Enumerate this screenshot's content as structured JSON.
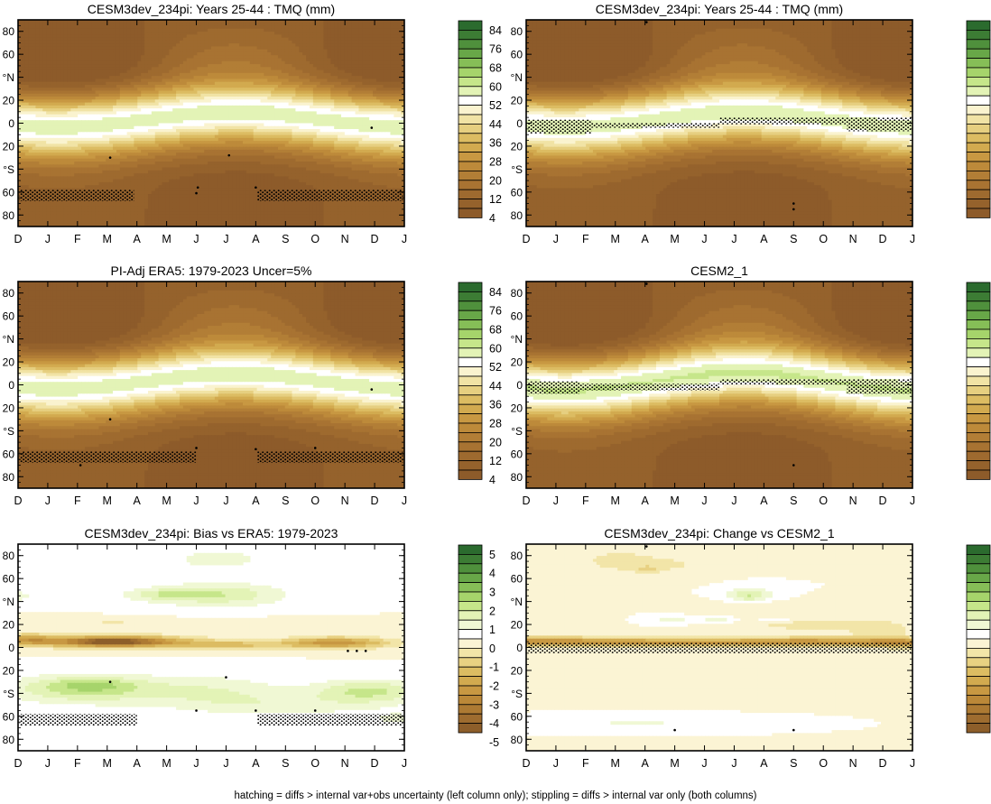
{
  "footer_note": "hatching = diffs > internal var+obs uncertainty (left column only); stippling = diffs > internal var only (both columns)",
  "chart_data": [
    {
      "type": "heatmap",
      "title": "CESM3dev_234pi: Years 25-44 : TMQ (mm)",
      "colorbar": "tmq",
      "x_ticks": [
        "D",
        "J",
        "F",
        "M",
        "A",
        "M",
        "J",
        "J",
        "A",
        "S",
        "O",
        "N",
        "D",
        "J"
      ],
      "y_ticks": [
        "80",
        "60",
        "°N",
        "20",
        "0",
        "20",
        "°S",
        "60",
        "80"
      ],
      "ylim": [
        -90,
        90
      ],
      "tropical_max": 54,
      "itcz_lat_amp": 6,
      "green_patch": {
        "x0": 4.9,
        "x1": 8.6,
        "lat": 8,
        "dlat": 2.5
      },
      "stipple_bands": [
        {
          "x0": 0.05,
          "x1": 3.9,
          "lat0": -58,
          "lat1": -68
        },
        {
          "x0": 8.05,
          "x1": 12.95,
          "lat0": -58,
          "lat1": -68
        }
      ],
      "dots": [
        {
          "x": 3.1,
          "lat": -30
        },
        {
          "x": 7.1,
          "lat": -28
        },
        {
          "x": 11.9,
          "lat": -4
        },
        {
          "x": 6.05,
          "lat": -56
        },
        {
          "x": 6.0,
          "lat": -61
        },
        {
          "x": 8.0,
          "lat": -56
        }
      ]
    },
    {
      "type": "heatmap",
      "title": "CESM3dev_234pi: Years 25-44 : TMQ (mm)",
      "colorbar": "tmq",
      "x_ticks": [
        "D",
        "J",
        "F",
        "M",
        "A",
        "M",
        "J",
        "J",
        "A",
        "S",
        "O",
        "N",
        "D",
        "J"
      ],
      "y_ticks": [
        "80",
        "60",
        "°N",
        "20",
        "0",
        "20",
        "°S",
        "60",
        "80"
      ],
      "ylim": [
        -90,
        90
      ],
      "tropical_max": 54,
      "itcz_lat_amp": 6,
      "green_patch": {
        "x0": 4.9,
        "x1": 8.6,
        "lat": 8,
        "dlat": 2.5
      },
      "stipple_bands": [
        {
          "x0": 0.05,
          "x1": 2.2,
          "lat0": 3,
          "lat1": -9
        },
        {
          "x0": 2.2,
          "x1": 6.5,
          "lat0": 0,
          "lat1": -4
        },
        {
          "x0": 6.5,
          "x1": 10.8,
          "lat0": 5,
          "lat1": -1
        },
        {
          "x0": 10.8,
          "x1": 12.95,
          "lat0": 5,
          "lat1": -7
        }
      ],
      "dots": [
        {
          "x": 4.05,
          "lat": 88
        },
        {
          "x": 9.0,
          "lat": -70
        },
        {
          "x": 9.0,
          "lat": -75
        }
      ]
    },
    {
      "type": "heatmap",
      "title": "PI-Adj ERA5: 1979-2023 Uncer=5%",
      "colorbar": "tmq",
      "x_ticks": [
        "D",
        "J",
        "F",
        "M",
        "A",
        "M",
        "J",
        "J",
        "A",
        "S",
        "O",
        "N",
        "D",
        "J"
      ],
      "y_ticks": [
        "80",
        "60",
        "°N",
        "20",
        "0",
        "20",
        "°S",
        "60",
        "80"
      ],
      "ylim": [
        -90,
        90
      ],
      "tropical_max": 54,
      "itcz_lat_amp": 6,
      "green_patch": {
        "x0": 3.5,
        "x1": 8.9,
        "lat": 4.5,
        "dlat": 2.5
      },
      "stipple_bands": [
        {
          "x0": 0.05,
          "x1": 6.0,
          "lat0": -58,
          "lat1": -68
        },
        {
          "x0": 8.05,
          "x1": 12.95,
          "lat0": -58,
          "lat1": -68
        }
      ],
      "dots": [
        {
          "x": 3.1,
          "lat": -30
        },
        {
          "x": 11.9,
          "lat": -4
        },
        {
          "x": 10.0,
          "lat": -55
        },
        {
          "x": 2.1,
          "lat": -70
        },
        {
          "x": 6.0,
          "lat": -55
        },
        {
          "x": 8.0,
          "lat": -56
        }
      ]
    },
    {
      "type": "heatmap",
      "title": "CESM2_1",
      "colorbar": "tmq",
      "x_ticks": [
        "D",
        "J",
        "F",
        "M",
        "A",
        "M",
        "J",
        "J",
        "A",
        "S",
        "O",
        "N",
        "D",
        "J"
      ],
      "y_ticks": [
        "80",
        "60",
        "°N",
        "20",
        "0",
        "20",
        "°S",
        "60",
        "80"
      ],
      "ylim": [
        -90,
        90
      ],
      "tropical_max": 56,
      "itcz_lat_amp": 7,
      "green_patch": {
        "x0": 1.5,
        "x1": 10.6,
        "lat": 4,
        "dlat": 4
      },
      "stipple_bands": [
        {
          "x0": 0.05,
          "x1": 1.8,
          "lat0": 3,
          "lat1": -8
        },
        {
          "x0": 1.8,
          "x1": 6.5,
          "lat0": 1,
          "lat1": -5
        },
        {
          "x0": 6.5,
          "x1": 10.8,
          "lat0": 5,
          "lat1": 0
        },
        {
          "x0": 10.8,
          "x1": 12.95,
          "lat0": 5,
          "lat1": -8
        }
      ],
      "dots": [
        {
          "x": 4.05,
          "lat": 88
        },
        {
          "x": 9.0,
          "lat": -70
        }
      ]
    },
    {
      "type": "heatmap",
      "title": "CESM3dev_234pi: Bias vs ERA5: 1979-2023",
      "colorbar": "diff",
      "x_ticks": [
        "D",
        "J",
        "F",
        "M",
        "A",
        "M",
        "J",
        "J",
        "A",
        "S",
        "O",
        "N",
        "D",
        "J"
      ],
      "y_ticks": [
        "80",
        "60",
        "°N",
        "20",
        "0",
        "20",
        "°S",
        "60",
        "80"
      ],
      "ylim": [
        -90,
        90
      ],
      "blobs": [
        {
          "x": 6.7,
          "lat": 77,
          "sx": 1.6,
          "sy": 9,
          "v": 0.8
        },
        {
          "x": 6.7,
          "lat": 46,
          "sx": 2.2,
          "sy": 10,
          "v": 1.5
        },
        {
          "x": 4.8,
          "lat": 46,
          "sx": 1.2,
          "sy": 5,
          "v": 0.9
        },
        {
          "x": 0.0,
          "lat": 45,
          "sx": 0.5,
          "sy": 4,
          "v": 0.8
        },
        {
          "x": 3.2,
          "lat": 5,
          "sx": 2.5,
          "sy": 5,
          "v": -4.2
        },
        {
          "x": 3.2,
          "lat": 5,
          "sx": 1.1,
          "sy": 3,
          "v": -1.3
        },
        {
          "x": 10.7,
          "lat": 4,
          "sx": 1.8,
          "sy": 5,
          "v": -2.8
        },
        {
          "x": 7.2,
          "lat": 2,
          "sx": 1.8,
          "sy": 4,
          "v": -1.5
        },
        {
          "x": 0.3,
          "lat": 7,
          "sx": 0.9,
          "sy": 5,
          "v": -2.0
        },
        {
          "x": 3.2,
          "lat": 23,
          "sx": 1.8,
          "sy": 3,
          "v": -0.6
        },
        {
          "x": 9.6,
          "lat": 22,
          "sx": 2.2,
          "sy": 3,
          "v": -0.5
        },
        {
          "x": 2.2,
          "lat": -36,
          "sx": 2.5,
          "sy": 12,
          "v": 1.8
        },
        {
          "x": 2.5,
          "lat": -32,
          "sx": 1.2,
          "sy": 5,
          "v": 0.7
        },
        {
          "x": 6.5,
          "lat": -38,
          "sx": 2.5,
          "sy": 14,
          "v": 0.9
        },
        {
          "x": 11.8,
          "lat": -38,
          "sx": 1.8,
          "sy": 10,
          "v": 1.6
        },
        {
          "x": 9.0,
          "lat": -50,
          "sx": 3.5,
          "sy": 10,
          "v": 0.7
        },
        {
          "x": 12.9,
          "lat": -62,
          "sx": 1.2,
          "sy": 6,
          "v": 0.6
        }
      ],
      "stipple_bands": [
        {
          "x0": 0.05,
          "x1": 4.0,
          "lat0": -58,
          "lat1": -68
        },
        {
          "x0": 8.05,
          "x1": 12.95,
          "lat0": -58,
          "lat1": -68
        }
      ],
      "dots": [
        {
          "x": 3.1,
          "lat": -30
        },
        {
          "x": 7.0,
          "lat": -26
        },
        {
          "x": 11.1,
          "lat": -3
        },
        {
          "x": 11.4,
          "lat": -3
        },
        {
          "x": 11.7,
          "lat": -3
        },
        {
          "x": 10.0,
          "lat": -55
        },
        {
          "x": 6.0,
          "lat": -55
        },
        {
          "x": 8.0,
          "lat": -55
        }
      ]
    },
    {
      "type": "heatmap",
      "title": "CESM3dev_234pi: Change vs CESM2_1",
      "colorbar": "diff",
      "x_ticks": [
        "D",
        "J",
        "F",
        "M",
        "A",
        "M",
        "J",
        "J",
        "A",
        "S",
        "O",
        "N",
        "D",
        "J"
      ],
      "y_ticks": [
        "80",
        "60",
        "°N",
        "20",
        "0",
        "20",
        "°S",
        "60",
        "80"
      ],
      "ylim": [
        -90,
        90
      ],
      "blobs": [
        {
          "x": 0.5,
          "lat": 5,
          "sx": 3.5,
          "sy": 4,
          "v": -3.0
        },
        {
          "x": 5.5,
          "lat": 4,
          "sx": 2.8,
          "sy": 3.5,
          "v": -2.2
        },
        {
          "x": 9.5,
          "lat": 5,
          "sx": 2.5,
          "sy": 4,
          "v": -2.6
        },
        {
          "x": 12.9,
          "lat": 4,
          "sx": 1.8,
          "sy": 4,
          "v": -2.8
        },
        {
          "x": 9.8,
          "lat": 20,
          "sx": 2.5,
          "sy": 6,
          "v": -0.8
        },
        {
          "x": 12.0,
          "lat": 14,
          "sx": 1.2,
          "sy": 8,
          "v": -0.6
        },
        {
          "x": 3.0,
          "lat": 76,
          "sx": 1.5,
          "sy": 12,
          "v": -0.6
        },
        {
          "x": 4.9,
          "lat": 72,
          "sx": 1.6,
          "sy": 8,
          "v": -0.5
        },
        {
          "x": 4.1,
          "lat": 68,
          "sx": 0.4,
          "sy": 3,
          "v": -0.8
        },
        {
          "x": 1.0,
          "lat": 40,
          "sx": 1.2,
          "sy": 7,
          "v": -0.4
        },
        {
          "x": 7.5,
          "lat": 35,
          "sx": 1.3,
          "sy": 6,
          "v": -0.4
        },
        {
          "x": 7.5,
          "lat": 46,
          "sx": 0.7,
          "sy": 6,
          "v": 1.6
        },
        {
          "x": 4.9,
          "lat": 24,
          "sx": 0.6,
          "sy": 3,
          "v": 0.8
        },
        {
          "x": 6.4,
          "lat": 24,
          "sx": 0.6,
          "sy": 3,
          "v": 0.8
        },
        {
          "x": 8.4,
          "lat": 24,
          "sx": 0.6,
          "sy": 2.5,
          "v": 0.7
        },
        {
          "x": 3.7,
          "lat": -66,
          "sx": 1.4,
          "sy": 2,
          "v": 0.8
        }
      ],
      "stipple_bands": [
        {
          "x0": 0.05,
          "x1": 12.95,
          "lat0": 4,
          "lat1": -5
        }
      ],
      "dots": [
        {
          "x": 4.05,
          "lat": 88
        },
        {
          "x": 5.0,
          "lat": -72
        },
        {
          "x": 9.0,
          "lat": -72
        }
      ]
    }
  ],
  "colorbars": {
    "tmq": {
      "labels": [
        "84",
        "76",
        "68",
        "60",
        "52",
        "44",
        "36",
        "28",
        "20",
        "12",
        "4"
      ],
      "colors": [
        "#2b6b2e",
        "#3c7c34",
        "#4f903c",
        "#68a748",
        "#86be57",
        "#a6d46b",
        "#c6e68a",
        "#e3f3b6",
        "#ffffff",
        "#faf3cf",
        "#f1e3a5",
        "#e6cf80",
        "#dcbc62",
        "#d2aa4f",
        "#c89842",
        "#bd8a3a",
        "#b27e36",
        "#a87332",
        "#9e6a2f",
        "#95622c",
        "#8d5b2a"
      ]
    },
    "diff": {
      "labels": [
        "5",
        "4",
        "3",
        "2",
        "1",
        "0",
        "-1",
        "-2",
        "-3",
        "-4",
        "-5"
      ],
      "colors": [
        "#2b6b2e",
        "#3c7c34",
        "#4f903c",
        "#68a748",
        "#86be57",
        "#a6d46b",
        "#c6e68a",
        "#e3f3b6",
        "#f0f8d4",
        "#ffffff",
        "#fbf4d4",
        "#f2e5a8",
        "#e8d182",
        "#dcbc62",
        "#d2aa4f",
        "#c89842",
        "#bb8838",
        "#ad7a33",
        "#9e6c2f",
        "#8d5e2a"
      ]
    }
  }
}
